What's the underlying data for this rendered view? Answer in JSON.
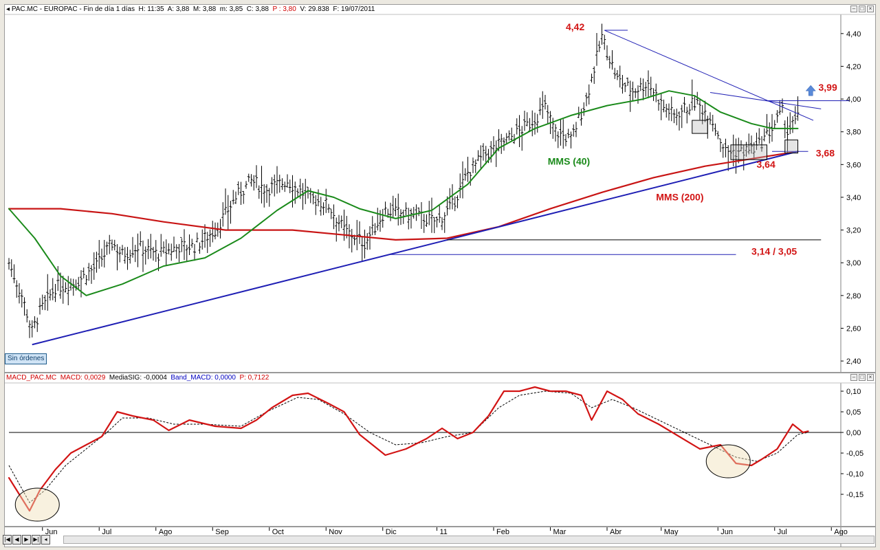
{
  "price_header": {
    "symbol": "PAC.MC - EUROPAC - Fin de día 1 días",
    "h": "H: 11:35",
    "a": "A: 3,88",
    "m": "M: 3,88",
    "mn": "m: 3,85",
    "c": "C: 3,88",
    "p": "P : 3,80",
    "v": "V: 29.838",
    "f": "F: 19/07/2011"
  },
  "macd_header": {
    "name": "MACD_PAC.MC",
    "macd": "MACD: 0,0029",
    "signal": "MediaSIG: -0,0004",
    "band": "Band_MACD: 0,0000",
    "p": "P: 0,7122"
  },
  "badge": "Sin órdenes",
  "colors": {
    "sma40": "#1a8a1a",
    "sma200": "#c81414",
    "trend": "#1e1eb4",
    "macd": "#d21414",
    "annot_red": "#d21414",
    "annot_green": "#1a8a1a"
  },
  "chart_data": [
    {
      "type": "ohlc-bar",
      "note_x": "trading sessions from mid-May 2010 to 19/07/2011",
      "x_ticks": [
        "Jun",
        "Jul",
        "Ago",
        "Sep",
        "Oct",
        "Nov",
        "Dic",
        "11",
        "Feb",
        "Mar",
        "Abr",
        "May",
        "Jun",
        "Jul",
        "Ago"
      ],
      "ylim": [
        2.35,
        4.5
      ],
      "y_ticks": [
        "2,40",
        "2,60",
        "2,80",
        "3,00",
        "3,20",
        "3,40",
        "3,60",
        "3,80",
        "4,00",
        "4,20",
        "4,40"
      ],
      "price_anchors": [
        [
          0,
          3.0
        ],
        [
          5,
          2.8
        ],
        [
          9,
          2.58
        ],
        [
          12,
          2.7
        ],
        [
          18,
          2.85
        ],
        [
          26,
          2.88
        ],
        [
          34,
          2.98
        ],
        [
          40,
          3.12
        ],
        [
          44,
          3.05
        ],
        [
          50,
          3.1
        ],
        [
          58,
          3.05
        ],
        [
          66,
          3.1
        ],
        [
          72,
          3.1
        ],
        [
          80,
          3.2
        ],
        [
          88,
          3.4
        ],
        [
          94,
          3.5
        ],
        [
          100,
          3.45
        ],
        [
          108,
          3.5
        ],
        [
          116,
          3.4
        ],
        [
          124,
          3.35
        ],
        [
          130,
          3.2
        ],
        [
          138,
          3.12
        ],
        [
          146,
          3.32
        ],
        [
          152,
          3.3
        ],
        [
          160,
          3.28
        ],
        [
          166,
          3.25
        ],
        [
          172,
          3.35
        ],
        [
          178,
          3.55
        ],
        [
          184,
          3.65
        ],
        [
          190,
          3.72
        ],
        [
          196,
          3.78
        ],
        [
          202,
          3.85
        ],
        [
          208,
          3.95
        ],
        [
          212,
          3.8
        ],
        [
          218,
          3.75
        ],
        [
          224,
          4.0
        ],
        [
          230,
          4.38
        ],
        [
          236,
          4.12
        ],
        [
          242,
          4.05
        ],
        [
          248,
          4.1
        ],
        [
          254,
          3.95
        ],
        [
          258,
          3.9
        ],
        [
          266,
          3.98
        ],
        [
          272,
          3.9
        ],
        [
          278,
          3.68
        ],
        [
          284,
          3.68
        ],
        [
          290,
          3.7
        ],
        [
          296,
          3.82
        ],
        [
          300,
          3.92
        ],
        [
          302,
          3.8
        ],
        [
          306,
          3.88
        ]
      ],
      "sma40": [
        [
          0,
          3.33
        ],
        [
          10,
          3.15
        ],
        [
          20,
          2.92
        ],
        [
          30,
          2.8
        ],
        [
          44,
          2.87
        ],
        [
          60,
          2.98
        ],
        [
          76,
          3.03
        ],
        [
          90,
          3.15
        ],
        [
          104,
          3.32
        ],
        [
          116,
          3.44
        ],
        [
          126,
          3.4
        ],
        [
          136,
          3.33
        ],
        [
          150,
          3.27
        ],
        [
          164,
          3.32
        ],
        [
          178,
          3.48
        ],
        [
          190,
          3.7
        ],
        [
          204,
          3.82
        ],
        [
          218,
          3.9
        ],
        [
          232,
          3.96
        ],
        [
          246,
          4.0
        ],
        [
          256,
          4.05
        ],
        [
          266,
          4.02
        ],
        [
          276,
          3.92
        ],
        [
          288,
          3.85
        ],
        [
          296,
          3.82
        ],
        [
          306,
          3.82
        ]
      ],
      "sma200": [
        [
          0,
          3.33
        ],
        [
          20,
          3.33
        ],
        [
          40,
          3.3
        ],
        [
          60,
          3.25
        ],
        [
          84,
          3.2
        ],
        [
          110,
          3.2
        ],
        [
          130,
          3.17
        ],
        [
          150,
          3.14
        ],
        [
          170,
          3.15
        ],
        [
          190,
          3.22
        ],
        [
          210,
          3.33
        ],
        [
          230,
          3.43
        ],
        [
          250,
          3.52
        ],
        [
          270,
          3.59
        ],
        [
          290,
          3.64
        ],
        [
          306,
          3.68
        ]
      ],
      "trendlines": [
        {
          "from": [
            9,
            2.5
          ],
          "to": [
            306,
            3.68
          ]
        },
        {
          "from": [
            231,
            4.42
          ],
          "to": [
            312,
            3.87
          ]
        },
        {
          "from": [
            272,
            4.04
          ],
          "to": [
            315,
            3.94
          ]
        }
      ],
      "hlines": [
        {
          "y": 4.42,
          "from": 231,
          "to": 240
        },
        {
          "y": 3.99,
          "from": 294,
          "to": 326
        },
        {
          "y": 3.68,
          "from": 296,
          "to": 310
        },
        {
          "y": 3.14,
          "from": 170,
          "to": 315
        },
        {
          "y": 3.05,
          "from": 148,
          "to": 282
        }
      ],
      "boxes": [
        {
          "x1": 265,
          "x2": 271,
          "y1": 3.87,
          "y2": 3.79
        },
        {
          "x1": 280,
          "x2": 294,
          "y1": 3.72,
          "y2": 3.63
        },
        {
          "x1": 301,
          "x2": 306,
          "y1": 3.75,
          "y2": 3.67
        }
      ],
      "annotations": [
        {
          "text": "4,42",
          "x": 216,
          "y": 4.42,
          "color": "red"
        },
        {
          "text": "3,99",
          "x": 314,
          "y": 4.05,
          "color": "red"
        },
        {
          "text": "3,68",
          "x": 313,
          "y": 3.65,
          "color": "red"
        },
        {
          "text": "3,64",
          "x": 290,
          "y": 3.58,
          "color": "red"
        },
        {
          "text": "MMS (40)",
          "x": 209,
          "y": 3.6,
          "color": "green"
        },
        {
          "text": "MMS (200)",
          "x": 251,
          "y": 3.38,
          "color": "red"
        },
        {
          "text": "3,14 / 3,05",
          "x": 288,
          "y": 3.05,
          "color": "red"
        }
      ],
      "arrow_up": {
        "x": 311,
        "y": 4.05
      }
    },
    {
      "type": "line",
      "series_labels": [
        "MACD",
        "MediaSIG"
      ],
      "ylim": [
        -0.22,
        0.13
      ],
      "y_ticks": [
        "0,10",
        "0,05",
        "0,00",
        "-0,05",
        "-0,10",
        "-0,15"
      ],
      "macd": [
        [
          0,
          -0.11
        ],
        [
          4,
          -0.15
        ],
        [
          8,
          -0.19
        ],
        [
          12,
          -0.14
        ],
        [
          18,
          -0.09
        ],
        [
          24,
          -0.05
        ],
        [
          30,
          -0.03
        ],
        [
          36,
          -0.01
        ],
        [
          42,
          0.05
        ],
        [
          48,
          0.04
        ],
        [
          56,
          0.03
        ],
        [
          62,
          0.005
        ],
        [
          70,
          0.03
        ],
        [
          80,
          0.015
        ],
        [
          90,
          0.01
        ],
        [
          96,
          0.03
        ],
        [
          102,
          0.06
        ],
        [
          110,
          0.09
        ],
        [
          116,
          0.095
        ],
        [
          124,
          0.07
        ],
        [
          130,
          0.05
        ],
        [
          136,
          -0.005
        ],
        [
          140,
          -0.025
        ],
        [
          146,
          -0.055
        ],
        [
          154,
          -0.04
        ],
        [
          162,
          -0.015
        ],
        [
          168,
          0.01
        ],
        [
          174,
          -0.015
        ],
        [
          180,
          0.0
        ],
        [
          186,
          0.04
        ],
        [
          192,
          0.1
        ],
        [
          198,
          0.1
        ],
        [
          204,
          0.11
        ],
        [
          210,
          0.1
        ],
        [
          216,
          0.1
        ],
        [
          222,
          0.09
        ],
        [
          226,
          0.03
        ],
        [
          232,
          0.1
        ],
        [
          238,
          0.08
        ],
        [
          244,
          0.045
        ],
        [
          252,
          0.02
        ],
        [
          260,
          -0.01
        ],
        [
          268,
          -0.04
        ],
        [
          276,
          -0.03
        ],
        [
          282,
          -0.075
        ],
        [
          288,
          -0.08
        ],
        [
          292,
          -0.065
        ],
        [
          298,
          -0.04
        ],
        [
          304,
          0.02
        ],
        [
          308,
          0.0
        ],
        [
          310,
          0.003
        ]
      ],
      "signal": [
        [
          0,
          -0.08
        ],
        [
          8,
          -0.17
        ],
        [
          14,
          -0.14
        ],
        [
          22,
          -0.08
        ],
        [
          30,
          -0.04
        ],
        [
          38,
          0.0
        ],
        [
          44,
          0.035
        ],
        [
          54,
          0.035
        ],
        [
          64,
          0.02
        ],
        [
          76,
          0.02
        ],
        [
          90,
          0.015
        ],
        [
          100,
          0.05
        ],
        [
          112,
          0.085
        ],
        [
          120,
          0.08
        ],
        [
          130,
          0.045
        ],
        [
          140,
          0.0
        ],
        [
          150,
          -0.03
        ],
        [
          160,
          -0.025
        ],
        [
          170,
          -0.01
        ],
        [
          180,
          0.0
        ],
        [
          190,
          0.06
        ],
        [
          198,
          0.09
        ],
        [
          208,
          0.1
        ],
        [
          218,
          0.095
        ],
        [
          226,
          0.06
        ],
        [
          234,
          0.08
        ],
        [
          242,
          0.06
        ],
        [
          252,
          0.03
        ],
        [
          262,
          0.0
        ],
        [
          272,
          -0.03
        ],
        [
          282,
          -0.06
        ],
        [
          290,
          -0.07
        ],
        [
          298,
          -0.05
        ],
        [
          306,
          -0.005
        ],
        [
          310,
          0.0
        ]
      ],
      "zero_line": 0.0,
      "ellipses": [
        {
          "x": 11,
          "y": -0.175
        },
        {
          "x": 279,
          "y": -0.07
        }
      ]
    }
  ]
}
